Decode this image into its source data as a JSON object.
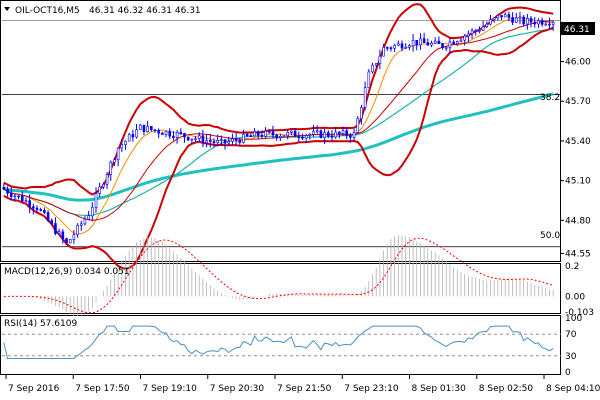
{
  "header": {
    "symbol_label": "OIL-OCT16,M5",
    "ohlc_label": "46.31 46.32 46.31 46.31",
    "current_price_tag": "46.31",
    "dropdown_icon": "triangle-down-icon"
  },
  "main_chart": {
    "y_ticks": [
      "46.00",
      "45.70",
      "45.40",
      "45.10",
      "44.80",
      "44.55"
    ],
    "fib_labels": [
      {
        "label": "38.2",
        "value": 45.75
      },
      {
        "label": "50.0",
        "value": 44.6
      }
    ]
  },
  "macd_panel": {
    "title": "MACD(12,26,9) 0.034 0.051",
    "y_ticks": [
      "0.2",
      "0.00",
      "-0.103"
    ]
  },
  "rsi_panel": {
    "title": "RSI(14) 57.6109",
    "y_ticks": [
      "100",
      "70",
      "30",
      "0"
    ],
    "levels": [
      70,
      30
    ]
  },
  "x_axis": {
    "labels": [
      "7 Sep 2016",
      "7 Sep 17:50",
      "7 Sep 19:10",
      "7 Sep 20:30",
      "7 Sep 21:50",
      "7 Sep 23:10",
      "8 Sep 01:30",
      "8 Sep 02:50",
      "8 Sep 04:10"
    ]
  },
  "colors": {
    "candles": "#0000ff",
    "bollinger": "#cc0000",
    "ema_fast": "#ff8c00",
    "ema_mid": "#20b2aa",
    "ema_slow": "#20c0c0",
    "macd_signal": "#ff0000",
    "macd_hist": "#b0b0b0",
    "rsi": "#4a90c0",
    "level_lines": "#808080"
  },
  "chart_data": {
    "type": "line",
    "title": "OIL-OCT16,M5",
    "ohlc": {
      "open": 46.31,
      "high": 46.32,
      "low": 46.31,
      "close": 46.31
    },
    "last_price": 46.31,
    "x": [
      "7 Sep 2016",
      "7 Sep 17:50",
      "7 Sep 19:10",
      "7 Sep 20:30",
      "7 Sep 21:50",
      "7 Sep 23:10",
      "8 Sep 01:30",
      "8 Sep 02:50",
      "8 Sep 04:10"
    ],
    "ylim": [
      44.5,
      46.45
    ],
    "series": [
      {
        "name": "",
        "values": [
          45.05,
          44.75,
          45.45,
          45.42,
          45.45,
          45.45,
          46.2,
          46.3,
          46.31
        ]
      }
    ],
    "macd": {
      "label": "MACD(12,26,9)",
      "macd": 0.034,
      "signal": 0.051,
      "ylim": [
        -0.103,
        0.2
      ]
    },
    "rsi": {
      "label": "RSI(14)",
      "value": 57.6109,
      "levels": [
        70,
        30
      ],
      "ylim": [
        0,
        100
      ]
    }
  }
}
